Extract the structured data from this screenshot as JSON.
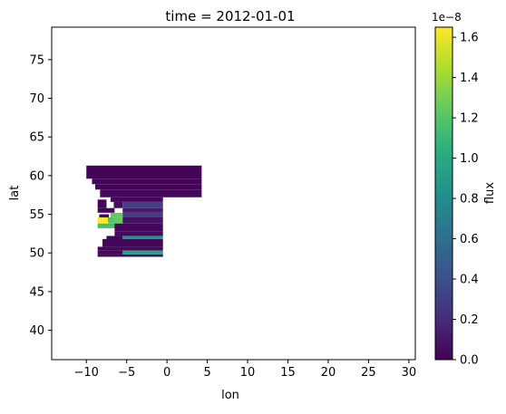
{
  "chart_data": {
    "type": "heatmap",
    "title": "time = 2012-01-01",
    "xlabel": "lon",
    "ylabel": "lat",
    "xlim": [
      -14.3,
      30.8
    ],
    "ylim": [
      36.2,
      79.2
    ],
    "x_ticks": [
      -10,
      -5,
      0,
      5,
      10,
      15,
      20,
      25,
      30
    ],
    "y_ticks": [
      40,
      45,
      50,
      55,
      60,
      65,
      70,
      75
    ],
    "colorbar": {
      "label": "flux",
      "exponent": "1e−8",
      "min": 0,
      "max": 1.65,
      "ticks": [
        0.0,
        0.2,
        0.4,
        0.6,
        0.8,
        1.0,
        1.2,
        1.4,
        1.6
      ],
      "colormap": "viridis"
    },
    "cells": [
      {
        "lon": [
          -10.0,
          4.3
        ],
        "lat": [
          59.6,
          61.3
        ],
        "value": 0.02
      },
      {
        "lon": [
          -9.3,
          4.3
        ],
        "lat": [
          58.9,
          59.6
        ],
        "value": 0.02
      },
      {
        "lon": [
          -8.9,
          4.3
        ],
        "lat": [
          58.2,
          58.9
        ],
        "value": 0.02
      },
      {
        "lon": [
          -8.3,
          4.3
        ],
        "lat": [
          57.2,
          58.2
        ],
        "value": 0.03
      },
      {
        "lon": [
          -7.0,
          -0.5
        ],
        "lat": [
          56.6,
          57.2
        ],
        "value": 0.03
      },
      {
        "lon": [
          -8.6,
          -7.5
        ],
        "lat": [
          55.8,
          56.9
        ],
        "value": 0.03
      },
      {
        "lon": [
          -6.6,
          -5.5
        ],
        "lat": [
          55.8,
          56.6
        ],
        "value": 0.05
      },
      {
        "lon": [
          -5.5,
          -0.5
        ],
        "lat": [
          55.8,
          56.6
        ],
        "value": 0.3
      },
      {
        "lon": [
          -8.6,
          -6.5
        ],
        "lat": [
          55.2,
          55.8
        ],
        "value": 0.03
      },
      {
        "lon": [
          -5.5,
          -0.5
        ],
        "lat": [
          55.2,
          55.8
        ],
        "value": 0.12
      },
      {
        "lon": [
          -7.0,
          -5.5
        ],
        "lat": [
          54.6,
          55.2
        ],
        "value": 1.25
      },
      {
        "lon": [
          -5.5,
          -0.5
        ],
        "lat": [
          54.6,
          55.2
        ],
        "value": 0.3
      },
      {
        "lon": [
          -8.4,
          -7.2
        ],
        "lat": [
          54.1,
          55.0
        ],
        "value": 0.04
      },
      {
        "lon": [
          -8.6,
          -7.3
        ],
        "lat": [
          53.8,
          54.6
        ],
        "value": 1.65
      },
      {
        "lon": [
          -7.3,
          -6.6
        ],
        "lat": [
          53.8,
          54.6
        ],
        "value": 1.2
      },
      {
        "lon": [
          -6.6,
          -5.5
        ],
        "lat": [
          53.8,
          54.6
        ],
        "value": 1.25
      },
      {
        "lon": [
          -5.5,
          -0.5
        ],
        "lat": [
          53.8,
          54.6
        ],
        "value": 0.08
      },
      {
        "lon": [
          -8.6,
          -5.5
        ],
        "lat": [
          53.2,
          53.8
        ],
        "value": 1.15
      },
      {
        "lon": [
          -6.5,
          -0.5
        ],
        "lat": [
          52.8,
          53.8
        ],
        "value": 0.03
      },
      {
        "lon": [
          -6.5,
          -0.5
        ],
        "lat": [
          52.2,
          52.8
        ],
        "value": 0.04
      },
      {
        "lon": [
          -5.5,
          -0.5
        ],
        "lat": [
          51.8,
          52.2
        ],
        "value": 0.85
      },
      {
        "lon": [
          -7.5,
          -5.5
        ],
        "lat": [
          51.4,
          52.2
        ],
        "value": 0.03
      },
      {
        "lon": [
          -8.0,
          -0.5
        ],
        "lat": [
          50.8,
          51.8
        ],
        "value": 0.03
      },
      {
        "lon": [
          -8.6,
          -0.5
        ],
        "lat": [
          50.3,
          50.8
        ],
        "value": 0.03
      },
      {
        "lon": [
          -5.5,
          -0.5
        ],
        "lat": [
          49.8,
          50.3
        ],
        "value": 0.95
      },
      {
        "lon": [
          -8.6,
          -0.5
        ],
        "lat": [
          49.5,
          49.8
        ],
        "value": 0.03
      },
      {
        "lon": [
          -8.6,
          -5.5
        ],
        "lat": [
          49.8,
          50.3
        ],
        "value": 0.03
      }
    ]
  }
}
